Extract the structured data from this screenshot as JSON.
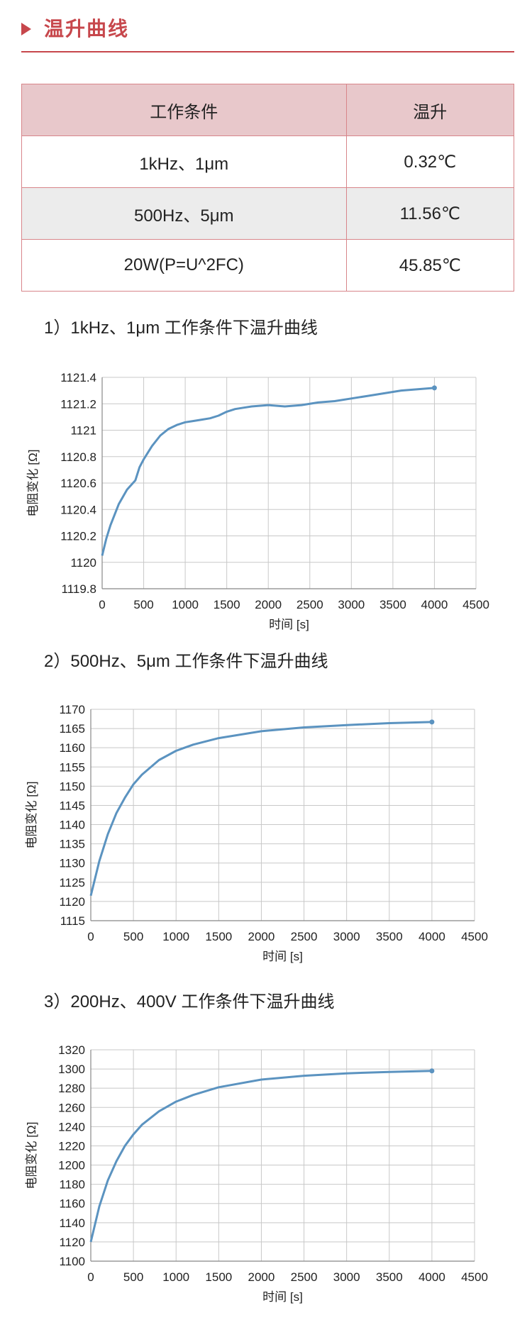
{
  "header": {
    "title": "温升曲线"
  },
  "table": {
    "headers": [
      "工作条件",
      "温升"
    ],
    "rows": [
      [
        "1kHz、1μm",
        "0.32℃"
      ],
      [
        "500Hz、5μm",
        "11.56℃"
      ],
      [
        "20W(P=U^2FC)",
        "45.85℃"
      ]
    ]
  },
  "captions": [
    "1）1kHz、1μm 工作条件下温升曲线",
    "2）500Hz、5μm 工作条件下温升曲线",
    "3）200Hz、400V 工作条件下温升曲线"
  ],
  "colors": {
    "accent": "#c7474c",
    "series": "#5b93c0",
    "grid": "#c8c8c8"
  },
  "chart_data": [
    {
      "type": "line",
      "xlabel": "时间 [s]",
      "ylabel": "电阻变化 [Ω]",
      "xlim": [
        0,
        4500
      ],
      "ylim": [
        1119.8,
        1121.4
      ],
      "x_ticks": [
        "0",
        "500",
        "1000",
        "1500",
        "2000",
        "2500",
        "3000",
        "3500",
        "4000",
        "4500"
      ],
      "y_ticks": [
        "1119.8",
        "1120",
        "1120.2",
        "1120.4",
        "1120.6",
        "1120.8",
        "1121",
        "1121.2",
        "1121.4"
      ],
      "grid": true,
      "x": [
        0,
        50,
        100,
        200,
        300,
        400,
        450,
        500,
        600,
        700,
        800,
        900,
        1000,
        1100,
        1200,
        1300,
        1400,
        1500,
        1600,
        1700,
        1800,
        2000,
        2200,
        2400,
        2600,
        2800,
        3000,
        3200,
        3400,
        3600,
        3800,
        4000
      ],
      "y": [
        1120.05,
        1120.18,
        1120.28,
        1120.44,
        1120.55,
        1120.62,
        1120.72,
        1120.78,
        1120.88,
        1120.96,
        1121.01,
        1121.04,
        1121.06,
        1121.07,
        1121.08,
        1121.09,
        1121.11,
        1121.14,
        1121.16,
        1121.17,
        1121.18,
        1121.19,
        1121.18,
        1121.19,
        1121.21,
        1121.22,
        1121.24,
        1121.26,
        1121.28,
        1121.3,
        1121.31,
        1121.32
      ]
    },
    {
      "type": "line",
      "xlabel": "时间 [s]",
      "ylabel": "电阻变化 [Ω]",
      "xlim": [
        0,
        4500
      ],
      "ylim": [
        1115,
        1170
      ],
      "x_ticks": [
        "0",
        "500",
        "1000",
        "1500",
        "2000",
        "2500",
        "3000",
        "3500",
        "4000",
        "4500"
      ],
      "y_ticks": [
        "1115",
        "1120",
        "1125",
        "1130",
        "1135",
        "1140",
        "1145",
        "1150",
        "1155",
        "1160",
        "1165",
        "1170"
      ],
      "grid": true,
      "x": [
        0,
        100,
        200,
        300,
        400,
        500,
        600,
        800,
        1000,
        1200,
        1500,
        2000,
        2500,
        3000,
        3500,
        4000
      ],
      "y": [
        1121.5,
        1130.5,
        1137.5,
        1143.0,
        1147.0,
        1150.5,
        1153.0,
        1156.8,
        1159.2,
        1160.8,
        1162.5,
        1164.3,
        1165.3,
        1165.9,
        1166.4,
        1166.7
      ]
    },
    {
      "type": "line",
      "xlabel": "时间 [s]",
      "ylabel": "电阻变化 [Ω]",
      "xlim": [
        0,
        4500
      ],
      "ylim": [
        1100,
        1320
      ],
      "x_ticks": [
        "0",
        "500",
        "1000",
        "1500",
        "2000",
        "2500",
        "3000",
        "3500",
        "4000",
        "4500"
      ],
      "y_ticks": [
        "1100",
        "1120",
        "1140",
        "1160",
        "1180",
        "1200",
        "1220",
        "1240",
        "1260",
        "1280",
        "1300",
        "1320"
      ],
      "grid": true,
      "x": [
        0,
        100,
        200,
        300,
        400,
        500,
        600,
        800,
        1000,
        1200,
        1500,
        2000,
        2500,
        3000,
        3500,
        4000
      ],
      "y": [
        1120,
        1157,
        1184,
        1204,
        1220,
        1232,
        1242,
        1256,
        1266,
        1273,
        1281,
        1289,
        1293,
        1295.5,
        1297,
        1298
      ]
    }
  ]
}
